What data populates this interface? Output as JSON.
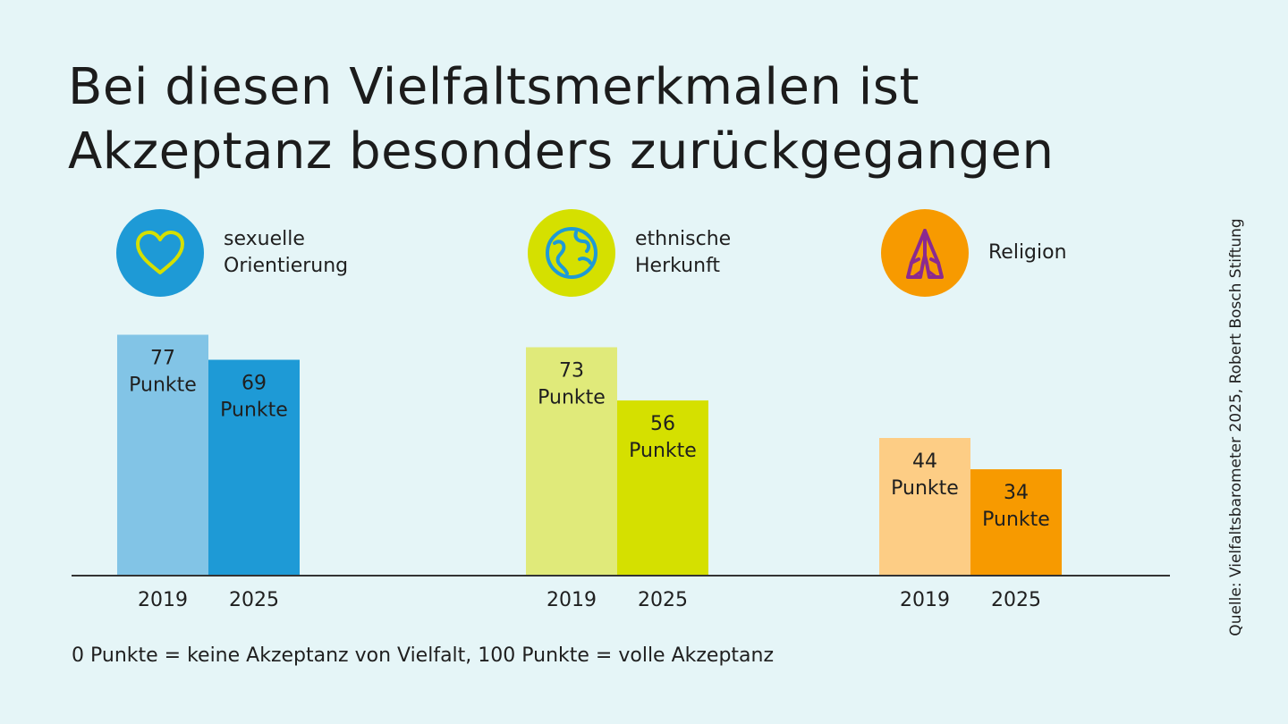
{
  "title_lines": [
    "Bei diesen Vielfaltsmerkmalen ist",
    "Akzeptanz besonders zurückgegangen"
  ],
  "footnote": "0 Punkte = keine Akzeptanz von Vielfalt, 100 Punkte = volle Akzeptanz",
  "source": "Quelle: Vielfaltsbarometer 2025, Robert Bosch Stiftung",
  "groups": [
    {
      "label_lines": [
        "sexuelle",
        "Orientierung"
      ],
      "icon": "heart-icon",
      "icon_color": "#1e9ad6"
    },
    {
      "label_lines": [
        "ethnische",
        "Herkunft"
      ],
      "icon": "globe-icon",
      "icon_color": "#d5e000"
    },
    {
      "label_lines": [
        "Religion"
      ],
      "icon": "praying-hands-icon",
      "icon_color": "#f79a00"
    }
  ],
  "chart_data": {
    "type": "bar",
    "categories": [
      "sexuelle Orientierung",
      "ethnische Herkunft",
      "Religion"
    ],
    "x": [
      "2019",
      "2025"
    ],
    "unit": "Punkte",
    "ylim": [
      0,
      100
    ],
    "grid": false,
    "series": [
      {
        "values": [
          77,
          73,
          44
        ],
        "colors": [
          "#82c4e6",
          "#e0ea7a",
          "#fdcd85"
        ]
      },
      {
        "values": [
          69,
          56,
          34
        ],
        "colors": [
          "#1e9ad6",
          "#d5e000",
          "#f79a00"
        ]
      }
    ]
  }
}
